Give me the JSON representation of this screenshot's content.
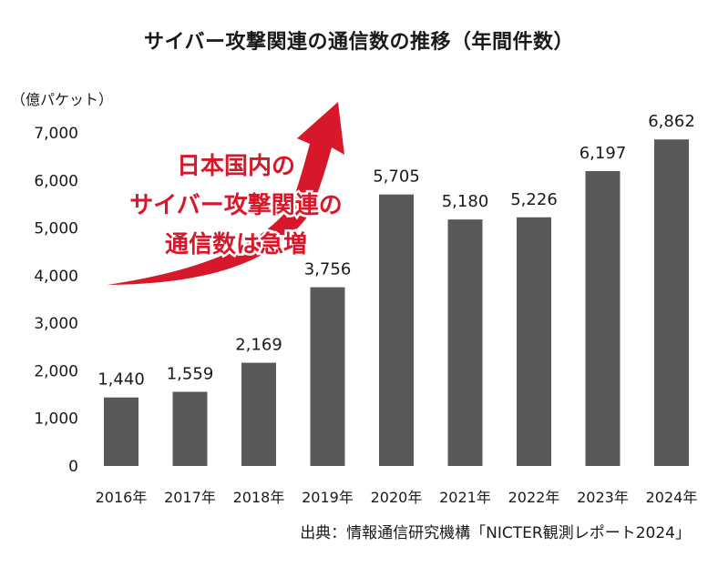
{
  "title": "サイバー攻撃関連の通信数の推移（年間件数）",
  "unit_label": "（億パケット）",
  "source": "出典：情報通信研究機構「NICTER観測レポート2024」",
  "annotation": {
    "lines": [
      "日本国内の",
      "サイバー攻撃関連の",
      "通信数は急増"
    ],
    "color": "#d6182a"
  },
  "colors": {
    "bar": "#595959",
    "accent": "#d6182a"
  },
  "chart_data": {
    "type": "bar",
    "title": "サイバー攻撃関連の通信数の推移（年間件数）",
    "ylabel": "（億パケット）",
    "xlabel": "",
    "ylim": [
      0,
      7000
    ],
    "yticks": [
      "0",
      "1,000",
      "2,000",
      "3,000",
      "4,000",
      "5,000",
      "6,000",
      "7,000"
    ],
    "ytick_values": [
      0,
      1000,
      2000,
      3000,
      4000,
      5000,
      6000,
      7000
    ],
    "grid": false,
    "categories": [
      "2016年",
      "2017年",
      "2018年",
      "2019年",
      "2020年",
      "2021年",
      "2022年",
      "2023年",
      "2024年"
    ],
    "values": [
      1440,
      1559,
      2169,
      3756,
      5705,
      5180,
      5226,
      6197,
      6862
    ],
    "value_labels": [
      "1,440",
      "1,559",
      "2,169",
      "3,756",
      "5,705",
      "5,180",
      "5,226",
      "6,197",
      "6,862"
    ]
  }
}
